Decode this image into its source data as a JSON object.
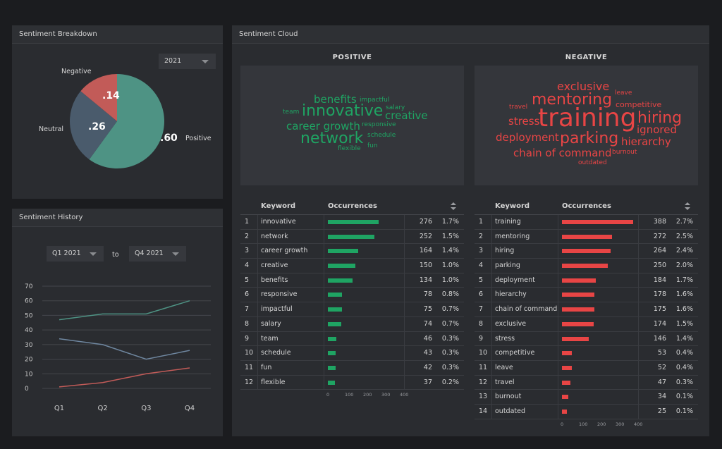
{
  "breakdown": {
    "title": "Sentiment Breakdown",
    "year": "2021",
    "slices": [
      {
        "name": "Positive",
        "value": 0.6,
        "label": ".60",
        "color": "#4e9384"
      },
      {
        "name": "Neutral",
        "value": 0.26,
        "label": ".26",
        "color": "#4a5b6c"
      },
      {
        "name": "Negative",
        "value": 0.14,
        "label": ".14",
        "color": "#c25b58"
      }
    ]
  },
  "history": {
    "title": "Sentiment History",
    "from": "Q1 2021",
    "to_label": "to",
    "to": "Q4 2021"
  },
  "chart_data": {
    "type": "line",
    "categories": [
      "Q1",
      "Q2",
      "Q3",
      "Q4"
    ],
    "ylim": [
      0,
      70
    ],
    "yticks": [
      "70",
      "60",
      "50",
      "40",
      "30",
      "20",
      "10",
      "0"
    ],
    "series": [
      {
        "values": [
          47,
          51,
          51,
          60
        ],
        "color": "#4e9384"
      },
      {
        "values": [
          34,
          30,
          20,
          26
        ],
        "color": "#6f87a0"
      },
      {
        "values": [
          1,
          4,
          10,
          14
        ],
        "color": "#c25b58"
      }
    ]
  },
  "cloud": {
    "title": "Sentiment Cloud",
    "positive_heading": "POSITIVE",
    "negative_heading": "NEGATIVE",
    "positive_words": [
      {
        "text": "benefits",
        "size": 15
      },
      {
        "text": "impactful",
        "size": 9
      },
      {
        "text": "salary",
        "size": 9
      },
      {
        "text": "team",
        "size": 9
      },
      {
        "text": "innovative",
        "size": 22
      },
      {
        "text": "creative",
        "size": 15
      },
      {
        "text": "responsive",
        "size": 9
      },
      {
        "text": "career growth",
        "size": 15
      },
      {
        "text": "network",
        "size": 22
      },
      {
        "text": "schedule",
        "size": 9
      },
      {
        "text": "flexible",
        "size": 9
      },
      {
        "text": "fun",
        "size": 9
      }
    ],
    "negative_words": [
      {
        "text": "exclusive",
        "size": 16
      },
      {
        "text": "leave",
        "size": 9
      },
      {
        "text": "mentoring",
        "size": 22
      },
      {
        "text": "competitive",
        "size": 11
      },
      {
        "text": "travel",
        "size": 9
      },
      {
        "text": "training",
        "size": 36
      },
      {
        "text": "stress",
        "size": 15
      },
      {
        "text": "hiring",
        "size": 22
      },
      {
        "text": "ignored",
        "size": 15
      },
      {
        "text": "deployment",
        "size": 15
      },
      {
        "text": "parking",
        "size": 22
      },
      {
        "text": "hierarchy",
        "size": 15
      },
      {
        "text": "chain of command",
        "size": 15
      },
      {
        "text": "burnout",
        "size": 9
      },
      {
        "text": "outdated",
        "size": 9
      }
    ]
  },
  "positive_table": {
    "header_keyword": "Keyword",
    "header_occurrences": "Occurrences",
    "bar_color": "#1fa463",
    "axis_ticks": [
      "0",
      "100",
      "200",
      "300",
      "400"
    ],
    "rows": [
      {
        "idx": "1",
        "keyword": "innovative",
        "count": 276,
        "count_label": "276",
        "pct": "1.7%"
      },
      {
        "idx": "2",
        "keyword": "network",
        "count": 252,
        "count_label": "252",
        "pct": "1.5%"
      },
      {
        "idx": "3",
        "keyword": "career growth",
        "count": 164,
        "count_label": "164",
        "pct": "1.4%"
      },
      {
        "idx": "4",
        "keyword": "creative",
        "count": 150,
        "count_label": "150",
        "pct": "1.0%"
      },
      {
        "idx": "5",
        "keyword": "benefits",
        "count": 134,
        "count_label": "134",
        "pct": "1.0%"
      },
      {
        "idx": "6",
        "keyword": "responsive",
        "count": 78,
        "count_label": "78",
        "pct": "0.8%"
      },
      {
        "idx": "7",
        "keyword": "impactful",
        "count": 75,
        "count_label": "75",
        "pct": "0.7%"
      },
      {
        "idx": "8",
        "keyword": "salary",
        "count": 74,
        "count_label": "74",
        "pct": "0.7%"
      },
      {
        "idx": "9",
        "keyword": "team",
        "count": 46,
        "count_label": "46",
        "pct": "0.3%"
      },
      {
        "idx": "10",
        "keyword": "schedule",
        "count": 43,
        "count_label": "43",
        "pct": "0.3%"
      },
      {
        "idx": "11",
        "keyword": "fun",
        "count": 42,
        "count_label": "42",
        "pct": "0.3%"
      },
      {
        "idx": "12",
        "keyword": "flexible",
        "count": 37,
        "count_label": "37",
        "pct": "0.2%"
      }
    ]
  },
  "negative_table": {
    "header_keyword": "Keyword",
    "header_occurrences": "Occurrences",
    "bar_color": "#e84545",
    "axis_ticks": [
      "0",
      "100",
      "200",
      "300",
      "400"
    ],
    "rows": [
      {
        "idx": "1",
        "keyword": "training",
        "count": 388,
        "count_label": "388",
        "pct": "2.7%"
      },
      {
        "idx": "2",
        "keyword": "mentoring",
        "count": 272,
        "count_label": "272",
        "pct": "2.5%"
      },
      {
        "idx": "3",
        "keyword": "hiring",
        "count": 264,
        "count_label": "264",
        "pct": "2.4%"
      },
      {
        "idx": "4",
        "keyword": "parking",
        "count": 250,
        "count_label": "250",
        "pct": "2.0%"
      },
      {
        "idx": "5",
        "keyword": "deployment",
        "count": 184,
        "count_label": "184",
        "pct": "1.7%"
      },
      {
        "idx": "6",
        "keyword": "hierarchy",
        "count": 178,
        "count_label": "178",
        "pct": "1.6%"
      },
      {
        "idx": "7",
        "keyword": "chain of command",
        "count": 175,
        "count_label": "175",
        "pct": "1.6%"
      },
      {
        "idx": "8",
        "keyword": "exclusive",
        "count": 174,
        "count_label": "174",
        "pct": "1.5%"
      },
      {
        "idx": "9",
        "keyword": "stress",
        "count": 146,
        "count_label": "146",
        "pct": "1.4%"
      },
      {
        "idx": "10",
        "keyword": "competitive",
        "count": 53,
        "count_label": "53",
        "pct": "0.4%"
      },
      {
        "idx": "11",
        "keyword": "leave",
        "count": 52,
        "count_label": "52",
        "pct": "0.4%"
      },
      {
        "idx": "12",
        "keyword": "travel",
        "count": 47,
        "count_label": "47",
        "pct": "0.3%"
      },
      {
        "idx": "13",
        "keyword": "burnout",
        "count": 34,
        "count_label": "34",
        "pct": "0.1%"
      },
      {
        "idx": "14",
        "keyword": "outdated",
        "count": 25,
        "count_label": "25",
        "pct": "0.1%"
      }
    ]
  }
}
